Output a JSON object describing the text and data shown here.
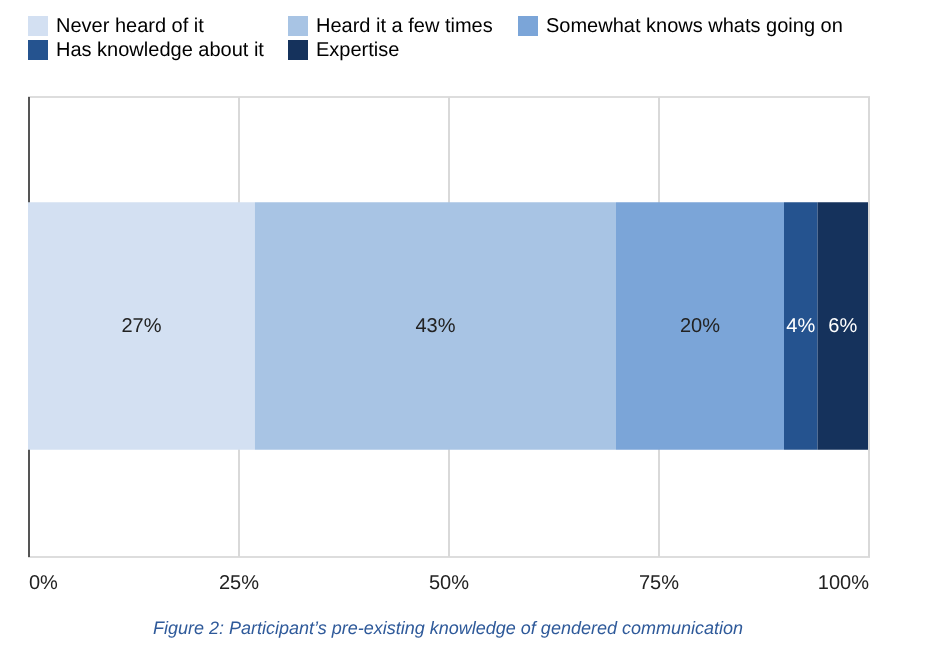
{
  "chart_data": {
    "type": "bar",
    "orientation": "horizontal",
    "stacked": true,
    "categories": [
      null
    ],
    "series": [
      {
        "name": "Never heard of it",
        "color": "#d3e0f2",
        "values": [
          27
        ],
        "value_labels": [
          "27%"
        ]
      },
      {
        "name": "Heard it a few times",
        "color": "#a8c4e4",
        "values": [
          43
        ],
        "value_labels": [
          "43%"
        ]
      },
      {
        "name": "Somewhat knows whats going on",
        "color": "#7ba5d8",
        "values": [
          20
        ],
        "value_labels": [
          "20%"
        ]
      },
      {
        "name": "Has knowledge about it",
        "color": "#25538f",
        "values": [
          4
        ],
        "value_labels": [
          "4%"
        ]
      },
      {
        "name": "Expertise",
        "color": "#15325c",
        "values": [
          6
        ],
        "value_labels": [
          "6%"
        ]
      }
    ],
    "xlim": [
      0,
      100
    ],
    "xticks": [
      {
        "value": 0,
        "label": "0%"
      },
      {
        "value": 25,
        "label": "25%"
      },
      {
        "value": 50,
        "label": "50%"
      },
      {
        "value": 75,
        "label": "75%"
      },
      {
        "value": 100,
        "label": "100%"
      }
    ],
    "grid": "x",
    "legend": "top",
    "annotations": [
      "Figure 2: Participant’s pre-existing knowledge of gendered communication"
    ]
  }
}
